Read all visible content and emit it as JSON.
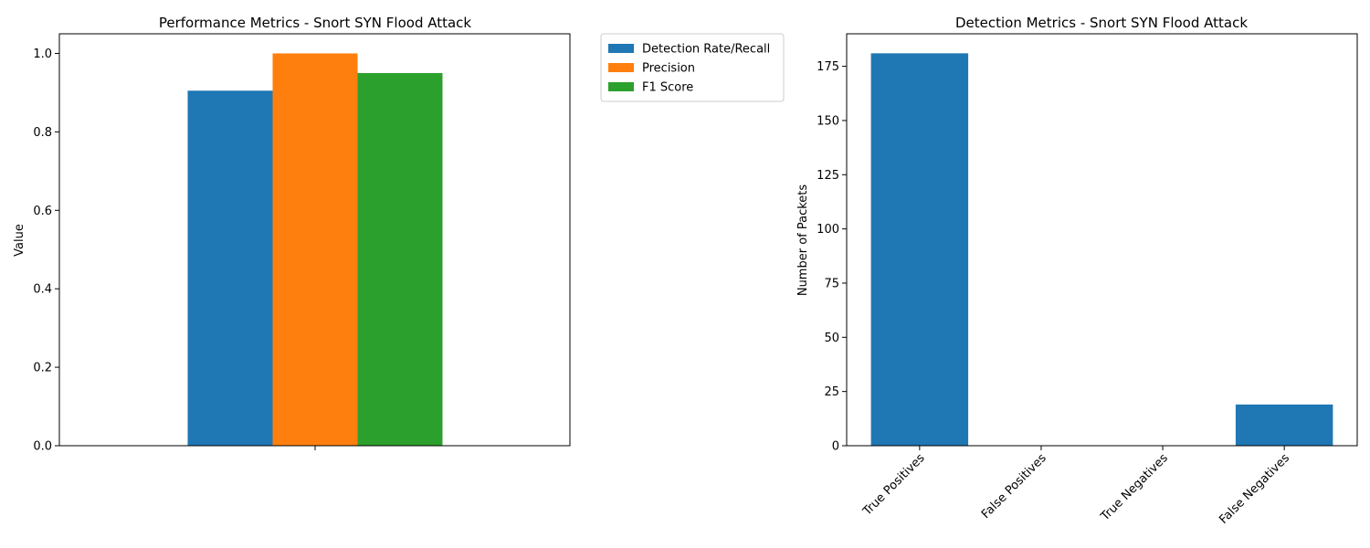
{
  "chart_data": [
    {
      "type": "bar",
      "title": "Performance Metrics - Snort SYN Flood Attack",
      "xlabel": "",
      "ylabel": "Value",
      "ylim": [
        0,
        1.05
      ],
      "yticks": [
        "0.0",
        "0.2",
        "0.4",
        "0.6",
        "0.8",
        "1.0"
      ],
      "categories": [
        ""
      ],
      "series": [
        {
          "name": "Detection Rate/Recall",
          "values": [
            0.905
          ],
          "color": "#1f77b4"
        },
        {
          "name": "Precision",
          "values": [
            1.0
          ],
          "color": "#ff7f0e"
        },
        {
          "name": "F1 Score",
          "values": [
            0.95
          ],
          "color": "#2ca02c"
        }
      ],
      "legend": "outside-upper-right",
      "grid": false
    },
    {
      "type": "bar",
      "title": "Detection Metrics - Snort SYN Flood Attack",
      "xlabel": "",
      "ylabel": "Number of Packets",
      "ylim": [
        0,
        190
      ],
      "yticks": [
        "0",
        "25",
        "50",
        "75",
        "100",
        "125",
        "150",
        "175"
      ],
      "categories": [
        "True Positives",
        "False Positives",
        "True Negatives",
        "False Negatives"
      ],
      "values": [
        181,
        0,
        0,
        19
      ],
      "color": "#1f77b4",
      "grid": false
    }
  ]
}
